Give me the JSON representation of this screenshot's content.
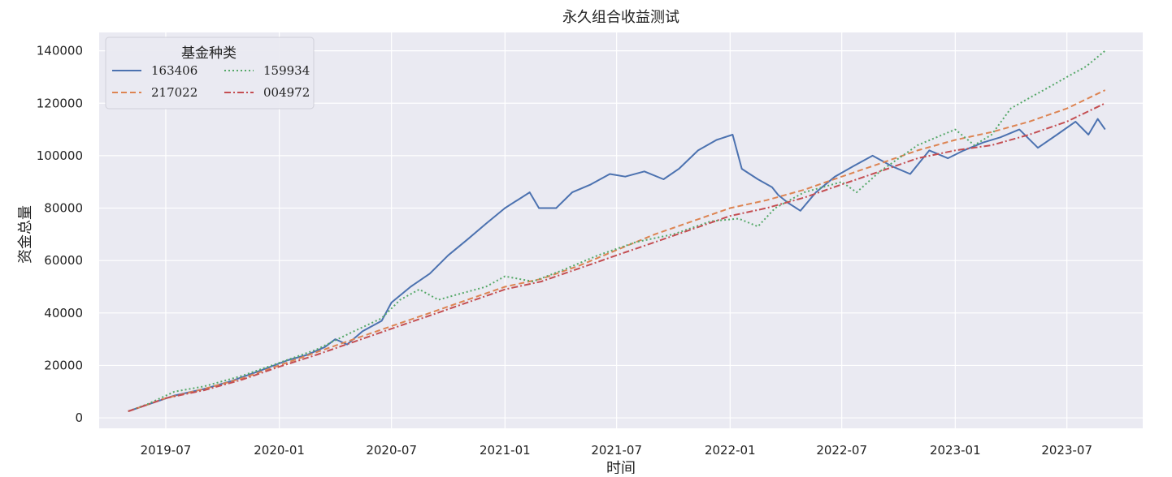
{
  "chart_data": {
    "type": "line",
    "title": "永久组合收益测试",
    "xlabel": "时间",
    "ylabel": "资金总量",
    "xlim": [
      "2019-03-15",
      "2023-11-01"
    ],
    "ylim": [
      -4000,
      147000
    ],
    "x_ticks": [
      "2019-07",
      "2020-01",
      "2020-07",
      "2021-01",
      "2021-07",
      "2022-01",
      "2022-07",
      "2023-01",
      "2023-07"
    ],
    "y_ticks": [
      0,
      20000,
      40000,
      60000,
      80000,
      100000,
      120000,
      140000
    ],
    "grid": true,
    "style": {
      "background": "#eaeaf2",
      "grid_color": "#ffffff"
    },
    "legend": {
      "title": "基金种类",
      "placement": "top-left",
      "columns": 2
    },
    "series": [
      {
        "name": "163406",
        "color": "#4c72b0",
        "dash": "solid",
        "points": [
          [
            "2019-05-01",
            2500
          ],
          [
            "2019-06-01",
            5000
          ],
          [
            "2019-07-15",
            8500
          ],
          [
            "2019-09-01",
            11000
          ],
          [
            "2019-10-15",
            14000
          ],
          [
            "2019-12-01",
            18000
          ],
          [
            "2020-01-15",
            22000
          ],
          [
            "2020-02-15",
            24000
          ],
          [
            "2020-03-15",
            27000
          ],
          [
            "2020-04-01",
            30000
          ],
          [
            "2020-04-20",
            28000
          ],
          [
            "2020-05-15",
            33000
          ],
          [
            "2020-06-15",
            37000
          ],
          [
            "2020-07-01",
            44000
          ],
          [
            "2020-08-01",
            50000
          ],
          [
            "2020-09-01",
            55000
          ],
          [
            "2020-10-01",
            62000
          ],
          [
            "2020-11-01",
            68000
          ],
          [
            "2020-12-01",
            74000
          ],
          [
            "2021-01-01",
            80000
          ],
          [
            "2021-02-10",
            86000
          ],
          [
            "2021-02-25",
            80000
          ],
          [
            "2021-03-25",
            80000
          ],
          [
            "2021-04-20",
            86000
          ],
          [
            "2021-05-20",
            89000
          ],
          [
            "2021-06-20",
            93000
          ],
          [
            "2021-07-15",
            92000
          ],
          [
            "2021-08-15",
            94000
          ],
          [
            "2021-09-15",
            91000
          ],
          [
            "2021-10-10",
            95000
          ],
          [
            "2021-11-10",
            102000
          ],
          [
            "2021-12-10",
            106000
          ],
          [
            "2022-01-05",
            108000
          ],
          [
            "2022-01-20",
            95000
          ],
          [
            "2022-02-15",
            91000
          ],
          [
            "2022-03-10",
            88000
          ],
          [
            "2022-03-20",
            85000
          ],
          [
            "2022-04-05",
            82000
          ],
          [
            "2022-04-25",
            79000
          ],
          [
            "2022-05-20",
            86000
          ],
          [
            "2022-06-20",
            92000
          ],
          [
            "2022-07-20",
            96000
          ],
          [
            "2022-08-20",
            100000
          ],
          [
            "2022-09-20",
            96000
          ],
          [
            "2022-10-20",
            93000
          ],
          [
            "2022-11-20",
            102000
          ],
          [
            "2022-12-20",
            99000
          ],
          [
            "2023-01-15",
            102000
          ],
          [
            "2023-02-15",
            105000
          ],
          [
            "2023-03-15",
            107000
          ],
          [
            "2023-04-15",
            110000
          ],
          [
            "2023-05-15",
            103000
          ],
          [
            "2023-06-15",
            108000
          ],
          [
            "2023-07-15",
            113000
          ],
          [
            "2023-08-05",
            108000
          ],
          [
            "2023-08-20",
            114000
          ],
          [
            "2023-09-01",
            110000
          ]
        ]
      },
      {
        "name": "217022",
        "color": "#dd8452",
        "dash": "dashed",
        "points": [
          [
            "2019-05-01",
            2500
          ],
          [
            "2019-06-01",
            5000
          ],
          [
            "2019-07-01",
            7500
          ],
          [
            "2019-09-01",
            11000
          ],
          [
            "2019-11-01",
            15000
          ],
          [
            "2020-01-01",
            20000
          ],
          [
            "2020-03-01",
            25000
          ],
          [
            "2020-05-01",
            30000
          ],
          [
            "2020-07-01",
            35000
          ],
          [
            "2020-09-01",
            40000
          ],
          [
            "2020-11-01",
            45000
          ],
          [
            "2021-01-01",
            50000
          ],
          [
            "2021-03-01",
            53000
          ],
          [
            "2021-05-01",
            58000
          ],
          [
            "2021-07-01",
            64000
          ],
          [
            "2021-09-01",
            70000
          ],
          [
            "2021-11-01",
            75000
          ],
          [
            "2022-01-01",
            80000
          ],
          [
            "2022-03-01",
            83000
          ],
          [
            "2022-05-01",
            87000
          ],
          [
            "2022-07-01",
            92000
          ],
          [
            "2022-09-01",
            97000
          ],
          [
            "2022-11-01",
            102000
          ],
          [
            "2023-01-01",
            106000
          ],
          [
            "2023-03-01",
            109000
          ],
          [
            "2023-05-01",
            113000
          ],
          [
            "2023-07-01",
            118000
          ],
          [
            "2023-09-01",
            125000
          ]
        ]
      },
      {
        "name": "159934",
        "color": "#55a868",
        "dash": "dotted",
        "points": [
          [
            "2019-05-01",
            2500
          ],
          [
            "2019-06-01",
            5200
          ],
          [
            "2019-07-15",
            10000
          ],
          [
            "2019-09-01",
            12000
          ],
          [
            "2019-11-01",
            16000
          ],
          [
            "2020-01-01",
            21000
          ],
          [
            "2020-03-01",
            26000
          ],
          [
            "2020-05-01",
            33000
          ],
          [
            "2020-06-15",
            38000
          ],
          [
            "2020-07-15",
            45000
          ],
          [
            "2020-08-15",
            49000
          ],
          [
            "2020-09-15",
            45000
          ],
          [
            "2020-10-15",
            47000
          ],
          [
            "2020-12-01",
            50000
          ],
          [
            "2021-01-01",
            54000
          ],
          [
            "2021-02-15",
            52000
          ],
          [
            "2021-04-01",
            56000
          ],
          [
            "2021-06-01",
            62000
          ],
          [
            "2021-08-01",
            67000
          ],
          [
            "2021-10-01",
            70000
          ],
          [
            "2021-12-01",
            75000
          ],
          [
            "2022-01-15",
            76000
          ],
          [
            "2022-02-15",
            73000
          ],
          [
            "2022-03-15",
            80000
          ],
          [
            "2022-05-01",
            86000
          ],
          [
            "2022-07-01",
            90000
          ],
          [
            "2022-07-25",
            86000
          ],
          [
            "2022-09-01",
            94000
          ],
          [
            "2022-11-01",
            104000
          ],
          [
            "2023-01-01",
            110000
          ],
          [
            "2023-02-01",
            104000
          ],
          [
            "2023-03-01",
            108000
          ],
          [
            "2023-04-01",
            118000
          ],
          [
            "2023-05-01",
            122000
          ],
          [
            "2023-06-01",
            126000
          ],
          [
            "2023-07-01",
            130000
          ],
          [
            "2023-08-01",
            134000
          ],
          [
            "2023-09-01",
            140000
          ]
        ]
      },
      {
        "name": "004972",
        "color": "#c44e52",
        "dash": "dashdot",
        "points": [
          [
            "2019-05-01",
            2500
          ],
          [
            "2019-06-01",
            5000
          ],
          [
            "2019-07-01",
            7500
          ],
          [
            "2019-09-01",
            10500
          ],
          [
            "2019-11-01",
            14500
          ],
          [
            "2020-01-01",
            19500
          ],
          [
            "2020-03-01",
            24000
          ],
          [
            "2020-05-01",
            29000
          ],
          [
            "2020-07-01",
            34000
          ],
          [
            "2020-09-01",
            39000
          ],
          [
            "2020-11-01",
            44000
          ],
          [
            "2021-01-01",
            49000
          ],
          [
            "2021-03-01",
            52000
          ],
          [
            "2021-05-01",
            57000
          ],
          [
            "2021-07-01",
            62000
          ],
          [
            "2021-09-01",
            67000
          ],
          [
            "2021-11-01",
            72000
          ],
          [
            "2022-01-01",
            77000
          ],
          [
            "2022-03-01",
            80000
          ],
          [
            "2022-05-01",
            84000
          ],
          [
            "2022-07-01",
            89000
          ],
          [
            "2022-09-01",
            94000
          ],
          [
            "2022-11-01",
            99000
          ],
          [
            "2023-01-01",
            102000
          ],
          [
            "2023-03-01",
            104000
          ],
          [
            "2023-05-01",
            108000
          ],
          [
            "2023-07-01",
            113000
          ],
          [
            "2023-09-01",
            120000
          ]
        ]
      }
    ]
  }
}
